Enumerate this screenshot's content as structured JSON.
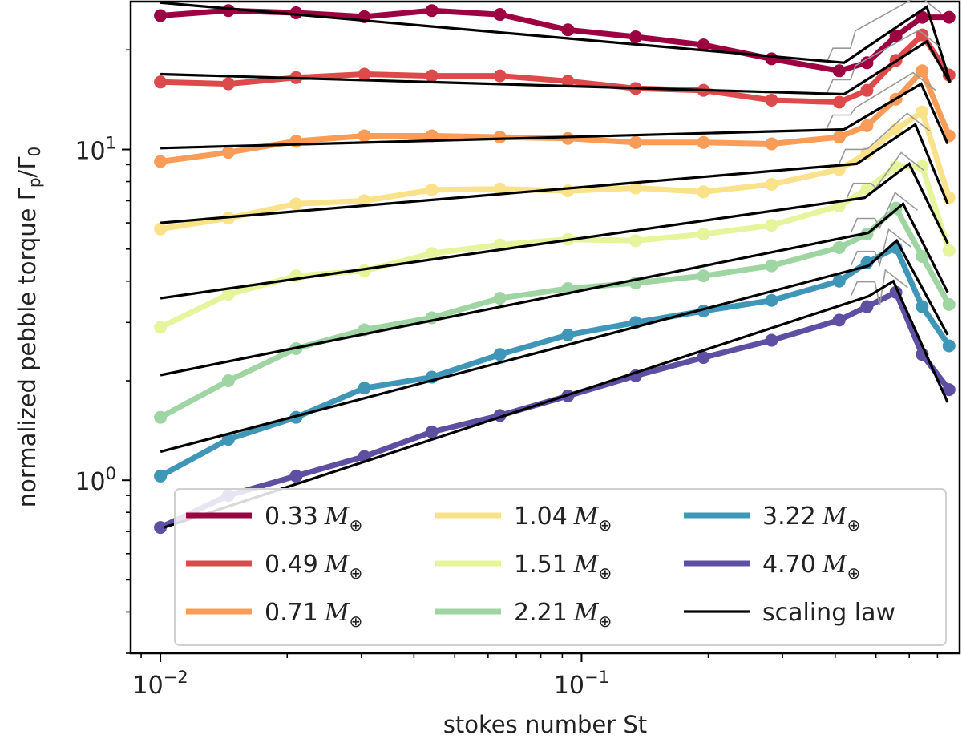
{
  "chart_data": {
    "type": "line",
    "title": "",
    "xlabel": "stokes number St",
    "ylabel": "normalized pebble torque Γp/Γ0",
    "xscale": "log",
    "yscale": "log",
    "xlim": [
      0.0085,
      0.79
    ],
    "ylim": [
      0.3,
      28
    ],
    "grid": false,
    "x_ticks": [
      {
        "value": 0.01,
        "base": "10",
        "exp": "−2"
      },
      {
        "value": 0.1,
        "base": "10",
        "exp": "−1"
      }
    ],
    "y_ticks": [
      {
        "value": 1,
        "base": "10",
        "exp": "0"
      },
      {
        "value": 10,
        "base": "10",
        "exp": "1"
      }
    ],
    "x": [
      0.01,
      0.0145,
      0.021,
      0.0305,
      0.0441,
      0.064,
      0.0928,
      0.1344,
      0.1948,
      0.2826,
      0.409,
      0.4761,
      0.5578,
      0.6438,
      0.7455
    ],
    "series": [
      {
        "name": "0.33",
        "color": "#9e0142",
        "values": [
          25.4,
          26.3,
          25.9,
          25.2,
          26.3,
          25.6,
          23.0,
          21.9,
          20.7,
          18.8,
          17.3,
          18.3,
          22.0,
          25.1,
          25.1
        ]
      },
      {
        "name": "0.49",
        "color": "#dc4a4c",
        "values": [
          16.0,
          15.8,
          16.5,
          16.9,
          16.7,
          16.7,
          16.1,
          15.3,
          15.1,
          14.1,
          13.9,
          15.1,
          18.6,
          22.2,
          16.8
        ]
      },
      {
        "name": "0.71",
        "color": "#f99c58",
        "values": [
          9.2,
          9.8,
          10.6,
          11.0,
          11.0,
          10.9,
          10.8,
          10.5,
          10.5,
          10.4,
          10.9,
          11.8,
          14.2,
          17.3,
          11.0
        ]
      },
      {
        "name": "1.04",
        "color": "#fae28a",
        "values": [
          5.75,
          6.2,
          6.85,
          7.0,
          7.55,
          7.6,
          7.5,
          7.65,
          7.45,
          7.85,
          8.7,
          9.75,
          11.5,
          13.0,
          7.15
        ]
      },
      {
        "name": "1.51",
        "color": "#e6f49c",
        "values": [
          2.9,
          3.65,
          4.15,
          4.3,
          4.85,
          5.15,
          5.35,
          5.3,
          5.55,
          5.9,
          6.75,
          7.6,
          8.85,
          8.9,
          4.95
        ]
      },
      {
        "name": "2.21",
        "color": "#9fd5a3",
        "values": [
          1.55,
          2.0,
          2.5,
          2.85,
          3.1,
          3.55,
          3.8,
          3.95,
          4.15,
          4.45,
          5.05,
          5.55,
          6.65,
          4.75,
          3.4
        ]
      },
      {
        "name": "3.22",
        "color": "#3f96b7",
        "values": [
          1.03,
          1.33,
          1.55,
          1.9,
          2.05,
          2.4,
          2.75,
          3.0,
          3.25,
          3.5,
          4.0,
          4.55,
          5.05,
          3.35,
          2.55
        ]
      },
      {
        "name": "4.70",
        "color": "#5e4fa2",
        "values": [
          0.72,
          0.9,
          1.03,
          1.18,
          1.4,
          1.57,
          1.8,
          2.07,
          2.35,
          2.65,
          3.05,
          3.35,
          3.7,
          2.4,
          1.88
        ]
      }
    ],
    "scaling_law": {
      "name": "scaling law",
      "color": "#000000",
      "lines": [
        {
          "x": [
            0.01,
            0.42,
            0.66,
            0.75
          ],
          "y": [
            27.8,
            18.3,
            27.0,
            16.0
          ]
        },
        {
          "x": [
            0.01,
            0.42,
            0.66,
            0.75
          ],
          "y": [
            16.9,
            14.7,
            21.2,
            15.9
          ]
        },
        {
          "x": [
            0.01,
            0.42,
            0.64,
            0.74
          ],
          "y": [
            10.1,
            11.5,
            15.8,
            10.4
          ]
        },
        {
          "x": [
            0.01,
            0.45,
            0.62,
            0.74
          ],
          "y": [
            6.0,
            9.05,
            11.9,
            6.85
          ]
        },
        {
          "x": [
            0.01,
            0.47,
            0.6,
            0.74
          ],
          "y": [
            3.55,
            7.15,
            9.05,
            5.2
          ]
        },
        {
          "x": [
            0.01,
            0.48,
            0.58,
            0.74
          ],
          "y": [
            2.08,
            5.6,
            6.85,
            3.7
          ]
        },
        {
          "x": [
            0.01,
            0.48,
            0.56,
            0.74
          ],
          "y": [
            1.22,
            4.45,
            5.3,
            2.75
          ]
        },
        {
          "x": [
            0.0102,
            0.48,
            0.55,
            0.74
          ],
          "y": [
            0.72,
            3.6,
            4.0,
            1.72
          ]
        }
      ]
    },
    "legend": {
      "location": "lower center",
      "ncol": 3,
      "unit_symbol": "M",
      "unit_subscript": "⊕",
      "entries": [
        {
          "label": "0.33",
          "color": "#9e0142"
        },
        {
          "label": "0.49",
          "color": "#dc4a4c"
        },
        {
          "label": "0.71",
          "color": "#f99c58"
        },
        {
          "label": "1.04",
          "color": "#fae28a"
        },
        {
          "label": "1.51",
          "color": "#e6f49c"
        },
        {
          "label": "2.21",
          "color": "#9fd5a3"
        },
        {
          "label": "3.22",
          "color": "#3f96b7"
        },
        {
          "label": "4.70",
          "color": "#5e4fa2"
        },
        {
          "label": "scaling law",
          "color": "#000000"
        }
      ]
    }
  }
}
